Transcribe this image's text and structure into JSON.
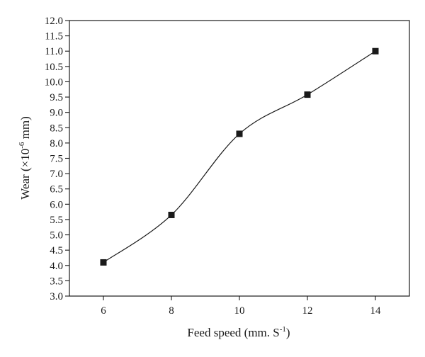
{
  "chart_data": {
    "type": "line",
    "title": "",
    "xlabel": "Feed speed (mm. S",
    "xlabel_sup": "-1",
    "xlabel_end": ")",
    "ylabel": "Wear (×10",
    "ylabel_sup": "-6",
    "ylabel_end": " mm)",
    "xlim": [
      5,
      15
    ],
    "ylim": [
      3.0,
      12.0
    ],
    "x_ticks": [
      6,
      8,
      10,
      12,
      14
    ],
    "x_tick_labels": [
      "6",
      "8",
      "10",
      "12",
      "14"
    ],
    "y_ticks": [
      3.0,
      3.5,
      4.0,
      4.5,
      5.0,
      5.5,
      6.0,
      6.5,
      7.0,
      7.5,
      8.0,
      8.5,
      9.0,
      9.5,
      10.0,
      10.5,
      11.0,
      11.5,
      12.0
    ],
    "y_tick_labels": [
      "3.0",
      "3.5",
      "4.0",
      "4.5",
      "5.0",
      "5.5",
      "6.0",
      "6.5",
      "7.0",
      "7.5",
      "8.0",
      "8.5",
      "9.0",
      "9.5",
      "10.0",
      "10.5",
      "11.0",
      "11.5",
      "12.0"
    ],
    "grid": false,
    "marker": "square",
    "line_style": "smooth",
    "series": [
      {
        "x": [
          6,
          8,
          10,
          12,
          14
        ],
        "y": [
          4.1,
          5.65,
          8.3,
          9.58,
          11.0
        ]
      }
    ],
    "colors": {
      "line": "#1a1a1a",
      "marker": "#1a1a1a",
      "axis": "#1a1a1a"
    }
  }
}
